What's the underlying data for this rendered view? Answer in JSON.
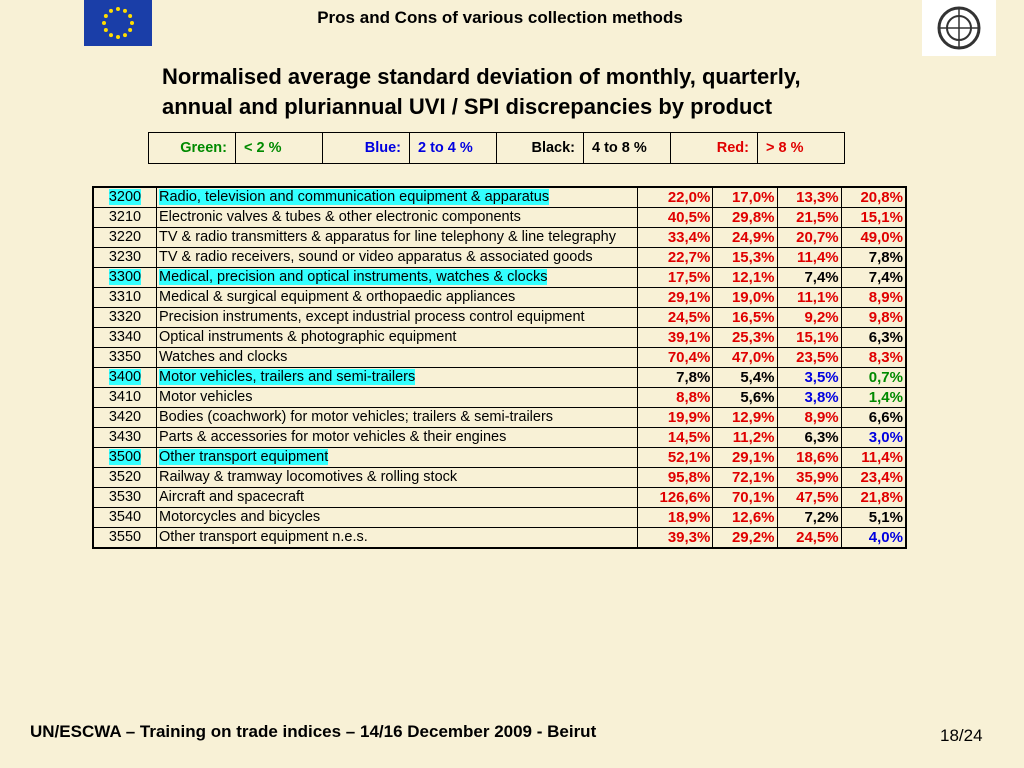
{
  "header": {
    "title": "Pros and Cons of various collection methods"
  },
  "subtitle": [
    "Normalised average standard deviation of monthly, quarterly,",
    "annual and pluriannual UVI / SPI discrepancies by product"
  ],
  "legend": [
    {
      "label": "Green:",
      "range": "< 2 %",
      "color": "#008a00"
    },
    {
      "label": "Blue:",
      "range": "2 to 4 %",
      "color": "#0000e0"
    },
    {
      "label": "Black:",
      "range": "4 to 8 %",
      "color": "#000000"
    },
    {
      "label": "Red:",
      "range": "> 8 %",
      "color": "#e00000"
    }
  ],
  "table": {
    "rows": [
      {
        "code": "3200",
        "description": "Radio, television and communication equipment & apparatus",
        "values": [
          "22,0%",
          "17,0%",
          "13,3%",
          "20,8%"
        ],
        "colors": [
          "#e00000",
          "#e00000",
          "#e00000",
          "#e00000"
        ],
        "highlight": true
      },
      {
        "code": "3210",
        "description": "Electronic valves & tubes & other electronic components",
        "values": [
          "40,5%",
          "29,8%",
          "21,5%",
          "15,1%"
        ],
        "colors": [
          "#e00000",
          "#e00000",
          "#e00000",
          "#e00000"
        ],
        "highlight": false
      },
      {
        "code": "3220",
        "description": "TV & radio transmitters & apparatus for line telephony & line telegraphy",
        "values": [
          "33,4%",
          "24,9%",
          "20,7%",
          "49,0%"
        ],
        "colors": [
          "#e00000",
          "#e00000",
          "#e00000",
          "#e00000"
        ],
        "highlight": false
      },
      {
        "code": "3230",
        "description": "TV & radio receivers, sound or video apparatus & associated goods",
        "values": [
          "22,7%",
          "15,3%",
          "11,4%",
          "7,8%"
        ],
        "colors": [
          "#e00000",
          "#e00000",
          "#e00000",
          "#000000"
        ],
        "highlight": false
      },
      {
        "code": "3300",
        "description": "Medical, precision and optical instruments, watches & clocks",
        "values": [
          "17,5%",
          "12,1%",
          "7,4%",
          "7,4%"
        ],
        "colors": [
          "#e00000",
          "#e00000",
          "#000000",
          "#000000"
        ],
        "highlight": true
      },
      {
        "code": "3310",
        "description": "Medical & surgical equipment & orthopaedic appliances",
        "values": [
          "29,1%",
          "19,0%",
          "11,1%",
          "8,9%"
        ],
        "colors": [
          "#e00000",
          "#e00000",
          "#e00000",
          "#e00000"
        ],
        "highlight": false
      },
      {
        "code": "3320",
        "description": "Precision instruments, except industrial process control equipment",
        "values": [
          "24,5%",
          "16,5%",
          "9,2%",
          "9,8%"
        ],
        "colors": [
          "#e00000",
          "#e00000",
          "#e00000",
          "#e00000"
        ],
        "highlight": false
      },
      {
        "code": "3340",
        "description": "Optical instruments & photographic equipment",
        "values": [
          "39,1%",
          "25,3%",
          "15,1%",
          "6,3%"
        ],
        "colors": [
          "#e00000",
          "#e00000",
          "#e00000",
          "#000000"
        ],
        "highlight": false
      },
      {
        "code": "3350",
        "description": "Watches and clocks",
        "values": [
          "70,4%",
          "47,0%",
          "23,5%",
          "8,3%"
        ],
        "colors": [
          "#e00000",
          "#e00000",
          "#e00000",
          "#e00000"
        ],
        "highlight": false
      },
      {
        "code": "3400",
        "description": "Motor vehicles, trailers and semi-trailers",
        "values": [
          "7,8%",
          "5,4%",
          "3,5%",
          "0,7%"
        ],
        "colors": [
          "#000000",
          "#000000",
          "#0000e0",
          "#008a00"
        ],
        "highlight": true
      },
      {
        "code": "3410",
        "description": "Motor vehicles",
        "values": [
          "8,8%",
          "5,6%",
          "3,8%",
          "1,4%"
        ],
        "colors": [
          "#e00000",
          "#000000",
          "#0000e0",
          "#008a00"
        ],
        "highlight": false
      },
      {
        "code": "3420",
        "description": "Bodies (coachwork) for motor vehicles; trailers & semi-trailers",
        "values": [
          "19,9%",
          "12,9%",
          "8,9%",
          "6,6%"
        ],
        "colors": [
          "#e00000",
          "#e00000",
          "#e00000",
          "#000000"
        ],
        "highlight": false
      },
      {
        "code": "3430",
        "description": "Parts & accessories for motor vehicles & their engines",
        "values": [
          "14,5%",
          "11,2%",
          "6,3%",
          "3,0%"
        ],
        "colors": [
          "#e00000",
          "#e00000",
          "#000000",
          "#0000e0"
        ],
        "highlight": false
      },
      {
        "code": "3500",
        "description": "Other transport equipment",
        "values": [
          "52,1%",
          "29,1%",
          "18,6%",
          "11,4%"
        ],
        "colors": [
          "#e00000",
          "#e00000",
          "#e00000",
          "#e00000"
        ],
        "highlight": true
      },
      {
        "code": "3520",
        "description": "Railway & tramway locomotives & rolling stock",
        "values": [
          "95,8%",
          "72,1%",
          "35,9%",
          "23,4%"
        ],
        "colors": [
          "#e00000",
          "#e00000",
          "#e00000",
          "#e00000"
        ],
        "highlight": false
      },
      {
        "code": "3530",
        "description": "Aircraft and spacecraft",
        "values": [
          "126,6%",
          "70,1%",
          "47,5%",
          "21,8%"
        ],
        "colors": [
          "#e00000",
          "#e00000",
          "#e00000",
          "#e00000"
        ],
        "highlight": false
      },
      {
        "code": "3540",
        "description": "Motorcycles and bicycles",
        "values": [
          "18,9%",
          "12,6%",
          "7,2%",
          "5,1%"
        ],
        "colors": [
          "#e00000",
          "#e00000",
          "#000000",
          "#000000"
        ],
        "highlight": false
      },
      {
        "code": "3550",
        "description": "Other transport equipment n.e.s.",
        "values": [
          "39,3%",
          "29,2%",
          "24,5%",
          "4,0%"
        ],
        "colors": [
          "#e00000",
          "#e00000",
          "#e00000",
          "#0000e0"
        ],
        "highlight": false
      }
    ]
  },
  "footer": {
    "text": "UN/ESCWA – Training on trade indices – 14/16 December 2009 - Beirut",
    "page": "18/24"
  }
}
